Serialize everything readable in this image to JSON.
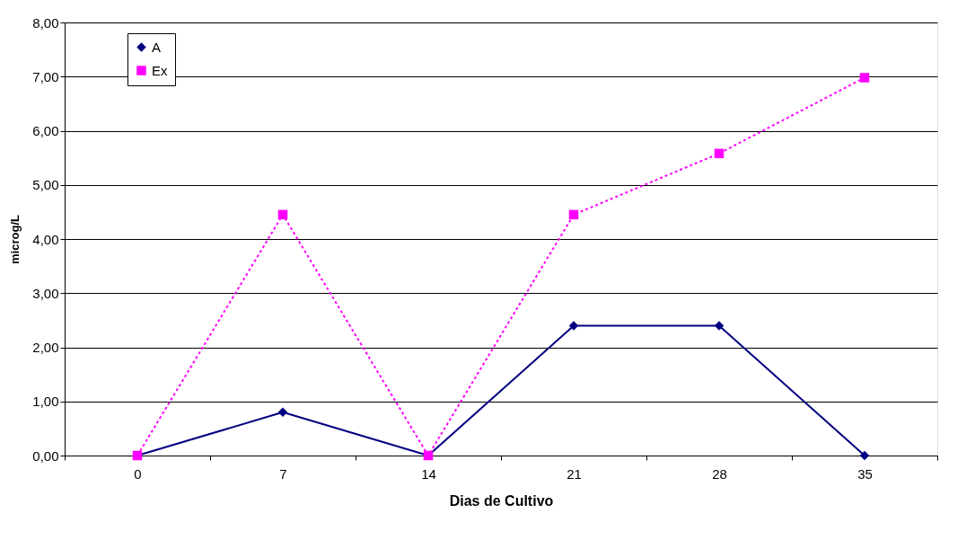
{
  "chart_data": {
    "type": "line",
    "xlabel": "Dias de Cultivo",
    "ylabel": "microg/L",
    "categories": [
      "0",
      "7",
      "14",
      "21",
      "28",
      "35"
    ],
    "series": [
      {
        "name": "A",
        "color": "#000080",
        "values": [
          0,
          0.8,
          0,
          2.4,
          2.4,
          0
        ],
        "marker": "diamond",
        "line_style": "solid"
      },
      {
        "name": "Ex",
        "color": "#ff00ff",
        "values": [
          0,
          4.45,
          0,
          4.45,
          5.58,
          6.98
        ],
        "marker": "square",
        "line_style": "dotted"
      }
    ],
    "ylim": [
      0,
      8
    ],
    "yticks": [
      {
        "value": 0,
        "label": "0,00"
      },
      {
        "value": 1,
        "label": "1,00"
      },
      {
        "value": 2,
        "label": "2,00"
      },
      {
        "value": 3,
        "label": "3,00"
      },
      {
        "value": 4,
        "label": "4,00"
      },
      {
        "value": 5,
        "label": "5,00"
      },
      {
        "value": 6,
        "label": "6,00"
      },
      {
        "value": 7,
        "label": "7,00"
      },
      {
        "value": 8,
        "label": "8,00"
      }
    ],
    "grid": "y",
    "legend": "top left"
  }
}
